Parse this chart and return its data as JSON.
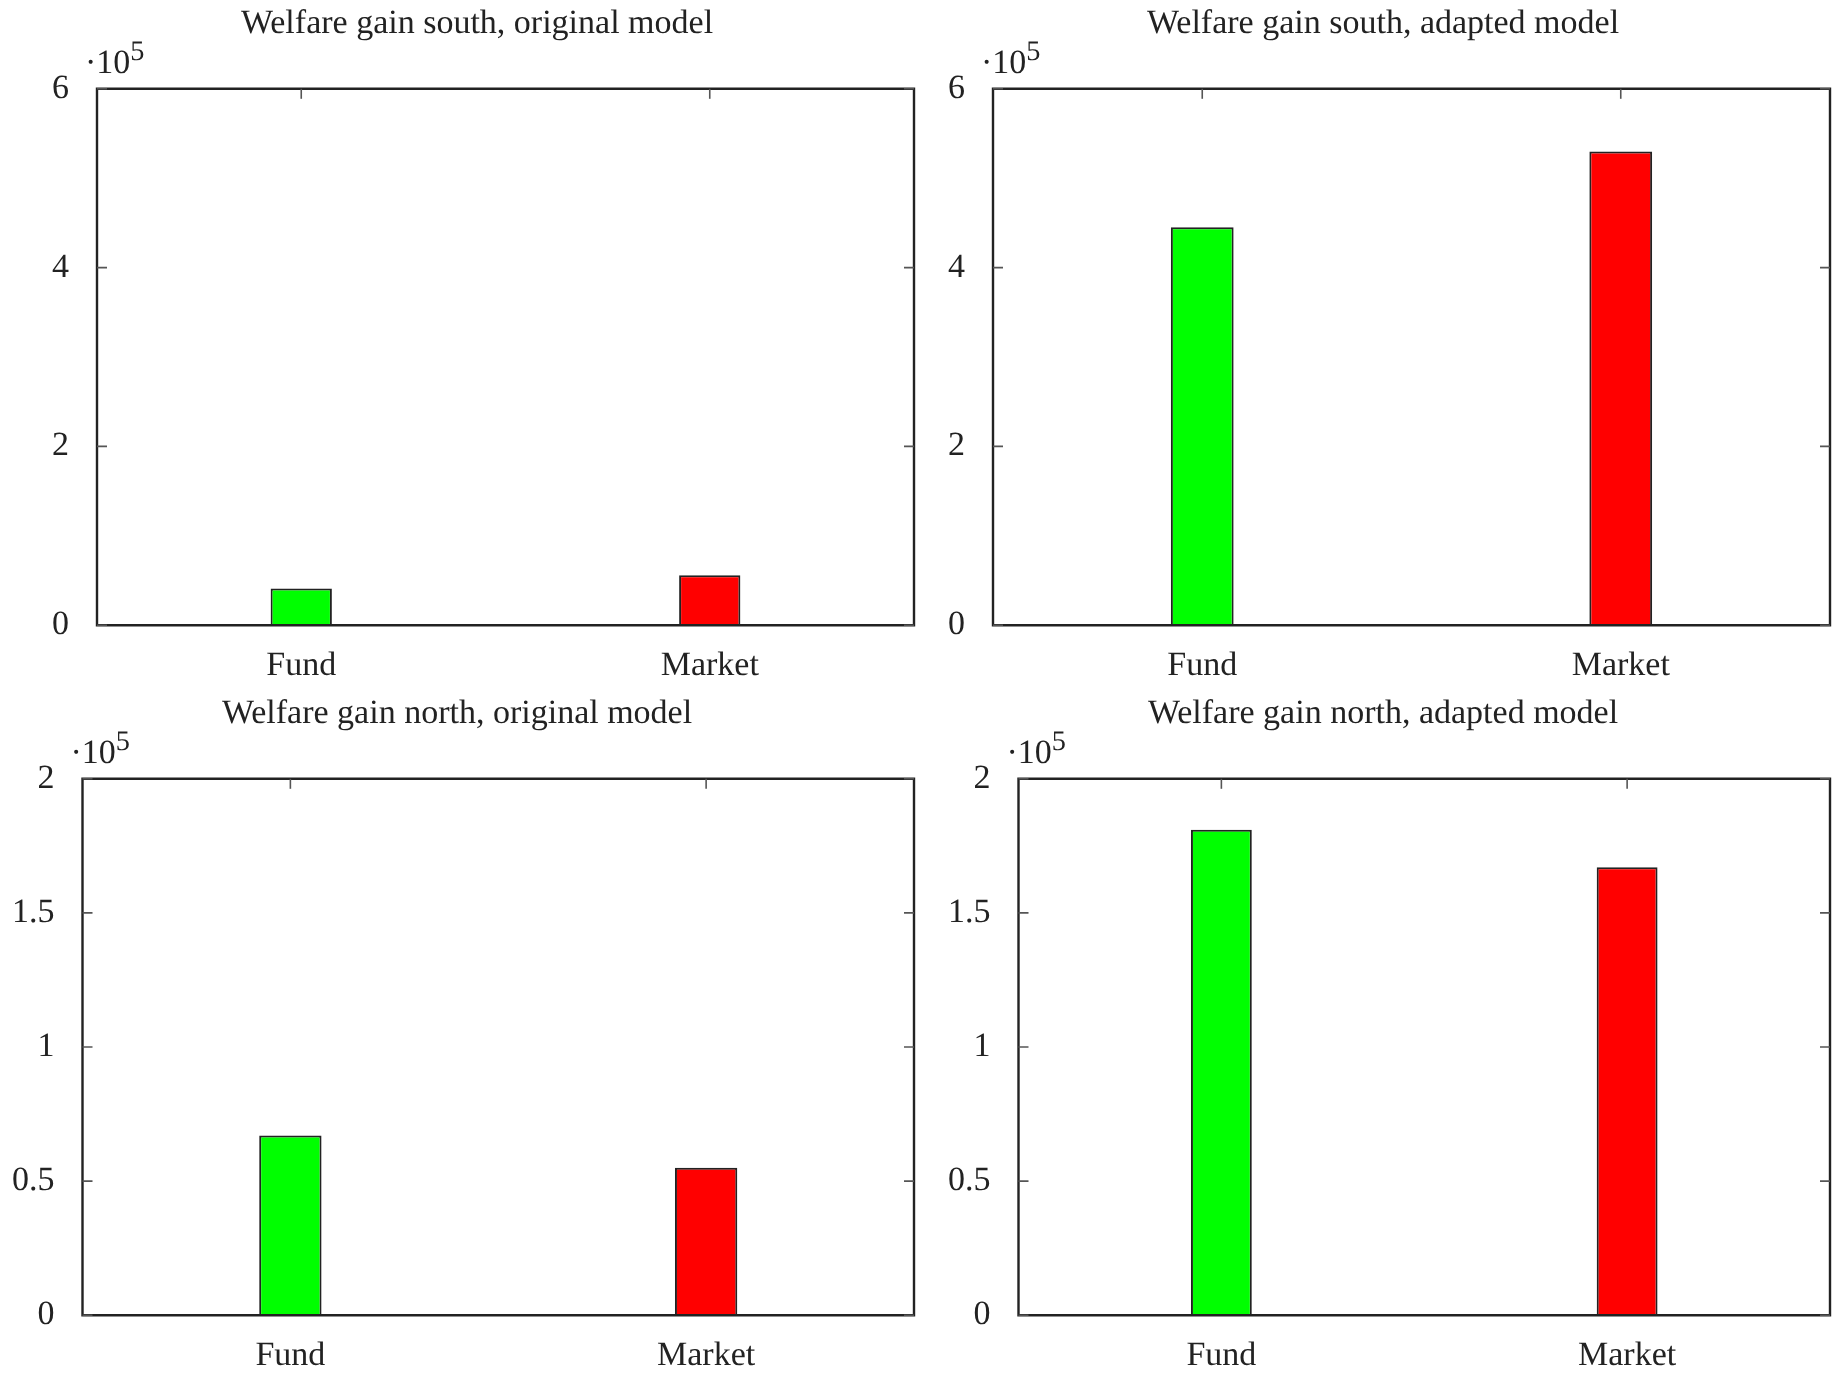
{
  "chart_data": [
    {
      "type": "bar",
      "title": "Welfare gain south, original model",
      "categories": [
        "Fund",
        "Market"
      ],
      "values": [
        0.41,
        0.56
      ],
      "colors": [
        "#00ff00",
        "#ff0000"
      ],
      "ylim": [
        0,
        6
      ],
      "yticks": [
        0,
        2,
        4,
        6
      ],
      "annotations": [
        "·10$^{5}$"
      ]
    },
    {
      "type": "bar",
      "title": "Welfare gain south, adapted model",
      "categories": [
        "Fund",
        "Market"
      ],
      "values": [
        4.45,
        5.3
      ],
      "colors": [
        "#00ff00",
        "#ff0000"
      ],
      "ylim": [
        0,
        6
      ],
      "yticks": [
        0,
        2,
        4,
        6
      ],
      "annotations": [
        "·10$^{5}$"
      ]
    },
    {
      "type": "bar",
      "title": "Welfare gain north, original model",
      "categories": [
        "Fund",
        "Market"
      ],
      "values": [
        0.67,
        0.55
      ],
      "colors": [
        "#00ff00",
        "#ff0000"
      ],
      "ylim": [
        0,
        2
      ],
      "yticks": [
        0,
        0.5,
        1,
        1.5,
        2
      ],
      "annotations": [
        "·10$^{5}$"
      ]
    },
    {
      "type": "bar",
      "title": "Welfare gain north, adapted model",
      "categories": [
        "Fund",
        "Market"
      ],
      "values": [
        1.81,
        1.67
      ],
      "colors": [
        "#00ff00",
        "#ff0000"
      ],
      "ylim": [
        0,
        2
      ],
      "yticks": [
        0,
        0.5,
        1,
        1.5,
        2
      ],
      "annotations": [
        "·10$^{5}$"
      ]
    }
  ]
}
